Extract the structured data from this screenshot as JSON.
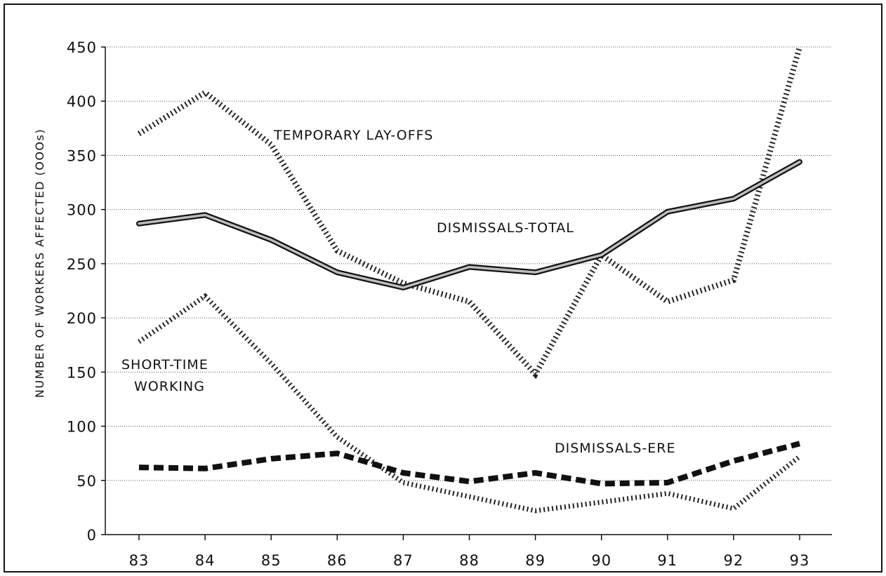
{
  "chart_data": {
    "type": "line",
    "title": "",
    "xlabel": "",
    "ylabel": "NUMBER OF WORKERS AFFECTED (OOOs)",
    "x": [
      "83",
      "84",
      "85",
      "86",
      "87",
      "88",
      "89",
      "90",
      "91",
      "92",
      "93"
    ],
    "ylim": [
      0,
      450
    ],
    "yticks": [
      0,
      50,
      100,
      150,
      200,
      250,
      300,
      350,
      400,
      450
    ],
    "grid": "horizontal-dotted",
    "legend": "none",
    "series": [
      {
        "name": "TEMPORARY LAY-OFFS",
        "style": "hatched",
        "values": [
          370,
          408,
          360,
          262,
          232,
          215,
          148,
          258,
          215,
          235,
          450
        ]
      },
      {
        "name": "DISMISSALS-TOTAL",
        "style": "double-solid",
        "values": [
          287,
          295,
          272,
          242,
          228,
          247,
          242,
          258,
          298,
          310,
          344
        ]
      },
      {
        "name": "SHORT-TIME WORKING",
        "style": "hatched-light",
        "values": [
          178,
          220,
          158,
          90,
          48,
          35,
          22,
          30,
          38,
          24,
          72
        ]
      },
      {
        "name": "DISMISSALS-ERE",
        "style": "dashed-heavy",
        "values": [
          62,
          61,
          70,
          75,
          57,
          49,
          57,
          47,
          48,
          68,
          84
        ]
      }
    ],
    "annotations": [
      {
        "text": "TEMPORARY LAY-OFFS",
        "series": 0
      },
      {
        "text": "DISMISSALS-TOTAL",
        "series": 1
      },
      {
        "text": "SHORT-TIME",
        "series": 2
      },
      {
        "text": "WORKING",
        "series": 2
      },
      {
        "text": "DISMISSALS-ERE",
        "series": 3
      }
    ]
  }
}
